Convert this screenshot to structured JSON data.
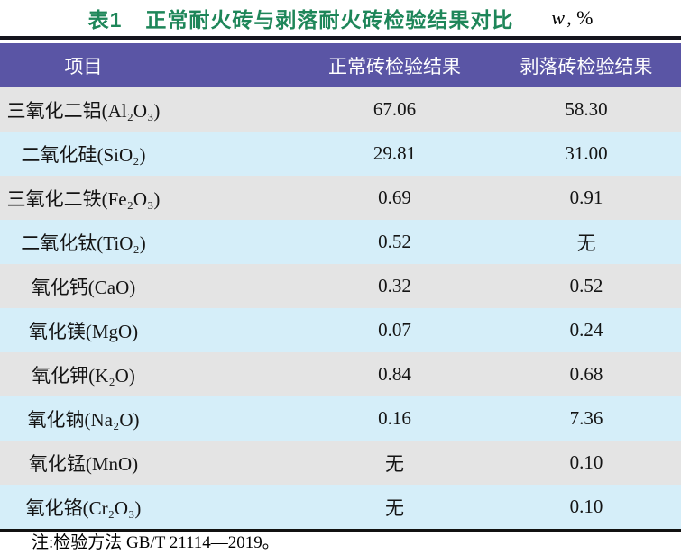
{
  "title": {
    "tag": "表1",
    "text": "正常耐火砖与剥落耐火砖检验结果对比",
    "unit_italic": "w",
    "unit_rest": ", %"
  },
  "table": {
    "headers": [
      "项目",
      "正常砖检验结果",
      "剥落砖检验结果"
    ],
    "rows": [
      {
        "item": "三氧化二铝(Al₂O₃)",
        "normal": "67.06",
        "spalled": "58.30"
      },
      {
        "item": "二氧化硅(SiO₂)",
        "normal": "29.81",
        "spalled": "31.00"
      },
      {
        "item": "三氧化二铁(Fe₂O₃)",
        "normal": "0.69",
        "spalled": "0.91"
      },
      {
        "item": "二氧化钛(TiO₂)",
        "normal": "0.52",
        "spalled": "无"
      },
      {
        "item": "氧化钙(CaO)",
        "normal": "0.32",
        "spalled": "0.52"
      },
      {
        "item": "氧化镁(MgO)",
        "normal": "0.07",
        "spalled": "0.24"
      },
      {
        "item": "氧化钾(K₂O)",
        "normal": "0.84",
        "spalled": "0.68"
      },
      {
        "item": "氧化钠(Na₂O)",
        "normal": "0.16",
        "spalled": "7.36"
      },
      {
        "item": "氧化锰(MnO)",
        "normal": "无",
        "spalled": "0.10"
      },
      {
        "item": "氧化铬(Cr₂O₃)",
        "normal": "无",
        "spalled": "0.10"
      }
    ]
  },
  "note": "注:检验方法 GB/T 21114—2019。",
  "colors": {
    "title_green": "#1e8659",
    "header_purple": "#5a55a5",
    "row_gray": "#e4e4e4",
    "row_blue": "#d5eef9",
    "rule_black": "#15151d"
  },
  "chart_data": {
    "type": "table",
    "title": "表1 正常耐火砖与剥落耐火砖检验结果对比",
    "unit": "w, %",
    "columns": [
      "项目",
      "正常砖检验结果",
      "剥落砖检验结果"
    ],
    "rows": [
      [
        "三氧化二铝(Al₂O₃)",
        "67.06",
        "58.30"
      ],
      [
        "二氧化硅(SiO₂)",
        "29.81",
        "31.00"
      ],
      [
        "三氧化二铁(Fe₂O₃)",
        "0.69",
        "0.91"
      ],
      [
        "二氧化钛(TiO₂)",
        "0.52",
        "无"
      ],
      [
        "氧化钙(CaO)",
        "0.32",
        "0.52"
      ],
      [
        "氧化镁(MgO)",
        "0.07",
        "0.24"
      ],
      [
        "氧化钾(K₂O)",
        "0.84",
        "0.68"
      ],
      [
        "氧化钠(Na₂O)",
        "0.16",
        "7.36"
      ],
      [
        "氧化锰(MnO)",
        "无",
        "0.10"
      ],
      [
        "氧化铬(Cr₂O₃)",
        "无",
        "0.10"
      ]
    ]
  }
}
